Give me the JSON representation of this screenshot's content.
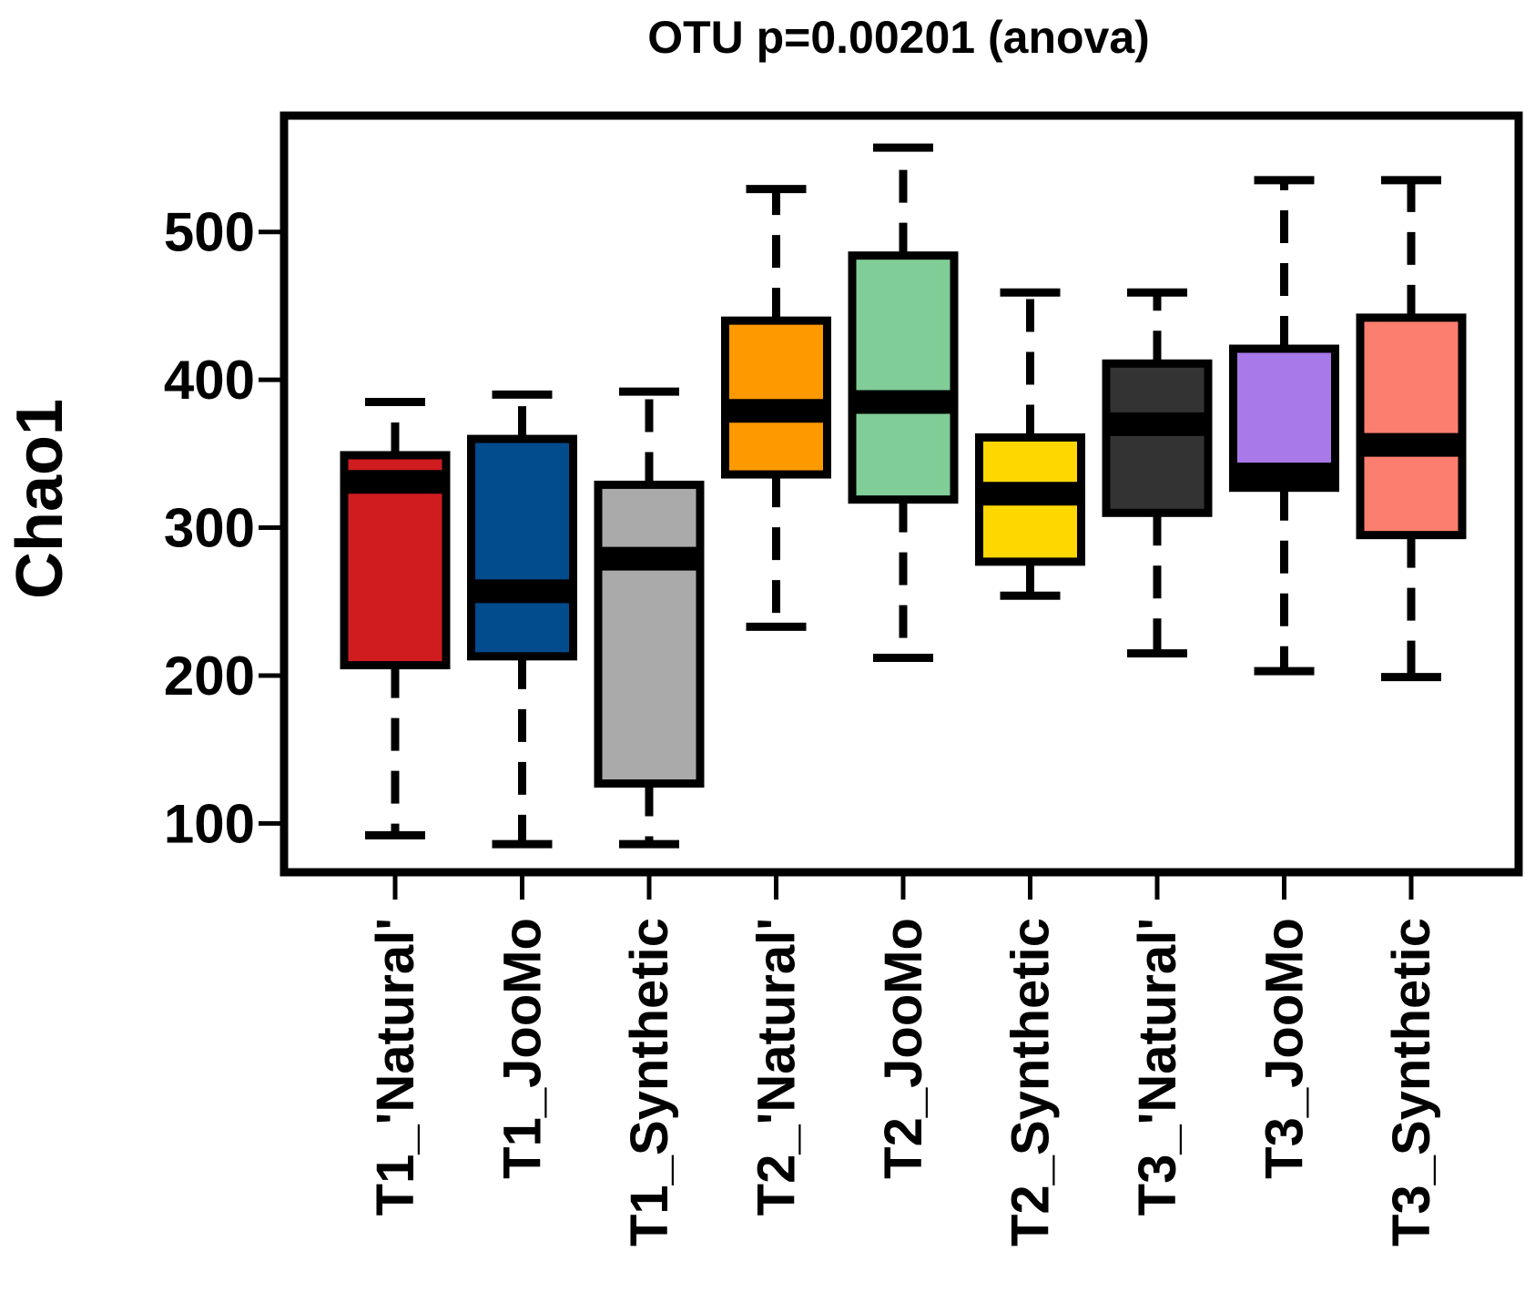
{
  "chart_data": {
    "type": "boxplot",
    "title": "OTU p=0.00201 (anova)",
    "xlabel": "",
    "ylabel": "Chao1",
    "ylim": [
      67,
      578
    ],
    "yticks": [
      100,
      200,
      300,
      400,
      500
    ],
    "grid": false,
    "legend": "none",
    "categories": [
      "T1_'Natural'",
      "T1_JooMo",
      "T1_Synthetic",
      "T2_'Natural'",
      "T2_JooMo",
      "T2_Synthetic",
      "T3_'Natural'",
      "T3_JooMo",
      "T3_Synthetic"
    ],
    "boxes": [
      {
        "category": "T1_'Natural'",
        "min": 92,
        "q1": 207,
        "median": 331,
        "q3": 349,
        "max": 385,
        "color": "#d01c1f"
      },
      {
        "category": "T1_JooMo",
        "min": 86,
        "q1": 213,
        "median": 257,
        "q3": 360,
        "max": 390,
        "color": "#024b8d"
      },
      {
        "category": "T1_Synthetic",
        "min": 86,
        "q1": 127,
        "median": 279,
        "q3": 329,
        "max": 392,
        "color": "#aaaaaa"
      },
      {
        "category": "T2_'Natural'",
        "min": 233,
        "q1": 336,
        "median": 379,
        "q3": 440,
        "max": 529,
        "color": "#ff9900"
      },
      {
        "category": "T2_JooMo",
        "min": 212,
        "q1": 319,
        "median": 385,
        "q3": 484,
        "max": 557,
        "color": "#80cd98"
      },
      {
        "category": "T2_Synthetic",
        "min": 254,
        "q1": 277,
        "median": 323,
        "q3": 361,
        "max": 459,
        "color": "#ffd700"
      },
      {
        "category": "T3_'Natural'",
        "min": 215,
        "q1": 310,
        "median": 370,
        "q3": 411,
        "max": 459,
        "color": "#333333"
      },
      {
        "category": "T3_JooMo",
        "min": 203,
        "q1": 327,
        "median": 336,
        "q3": 421,
        "max": 535,
        "color": "#a879e8"
      },
      {
        "category": "T3_Synthetic",
        "min": 199,
        "q1": 295,
        "median": 356,
        "q3": 442,
        "max": 535,
        "color": "#fc7e6f"
      }
    ]
  }
}
